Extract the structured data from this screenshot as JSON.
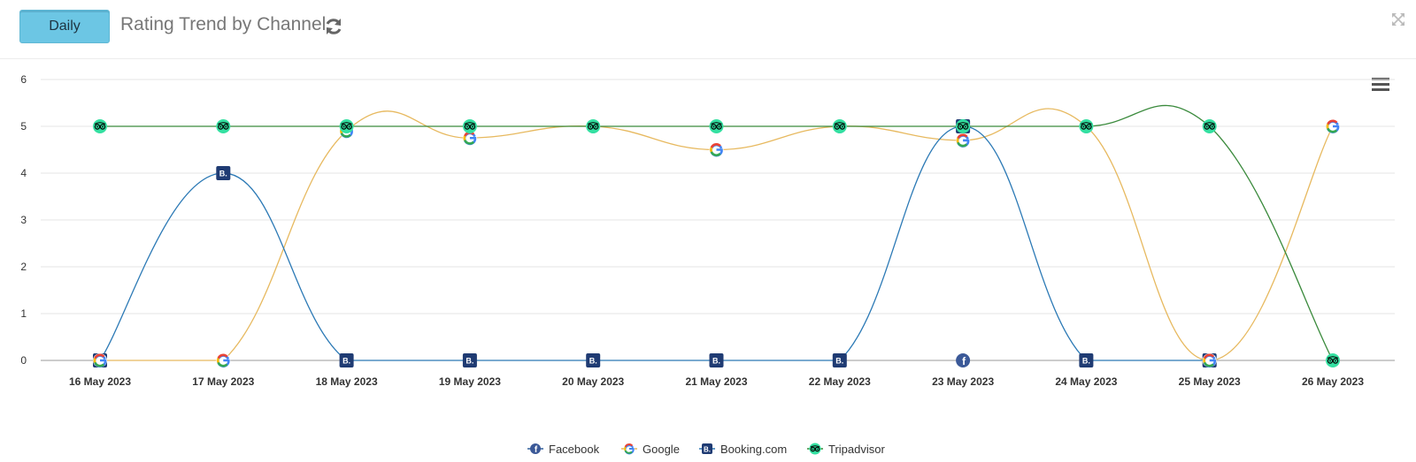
{
  "header": {
    "toggle_label": "Daily",
    "title": "Rating Trend by Channel"
  },
  "icons": {
    "refresh": "refresh-icon",
    "expand": "expand-icon",
    "menu": "hamburger-menu-icon"
  },
  "chart_data": {
    "type": "line",
    "title": "",
    "xlabel": "",
    "ylabel": "",
    "categories": [
      "16 May 2023",
      "17 May 2023",
      "18 May 2023",
      "19 May 2023",
      "20 May 2023",
      "21 May 2023",
      "22 May 2023",
      "23 May 2023",
      "24 May 2023",
      "25 May 2023",
      "26 May 2023"
    ],
    "ylim": [
      0,
      6
    ],
    "yticks": [
      0,
      1,
      2,
      3,
      4,
      5,
      6
    ],
    "grid": true,
    "legend_position": "bottom-center",
    "series": [
      {
        "name": "Facebook",
        "color": "#2f5f9a",
        "icon": "facebook-icon",
        "values": [
          null,
          null,
          null,
          null,
          null,
          null,
          null,
          0,
          null,
          null,
          null
        ]
      },
      {
        "name": "Google",
        "color": "#e7b95f",
        "icon": "google-icon",
        "values": [
          0,
          0,
          4.9,
          4.75,
          5,
          4.5,
          5,
          4.7,
          5,
          0,
          5
        ]
      },
      {
        "name": "Booking.com",
        "color": "#2b79b5",
        "icon": "booking-icon",
        "values": [
          0,
          4,
          0,
          0,
          0,
          0,
          0,
          5,
          0,
          0,
          null
        ]
      },
      {
        "name": "Tripadvisor",
        "color": "#3a8a3c",
        "icon": "tripadvisor-icon",
        "values": [
          5,
          5,
          5,
          5,
          5,
          5,
          5,
          5,
          5,
          5,
          0
        ]
      }
    ]
  }
}
